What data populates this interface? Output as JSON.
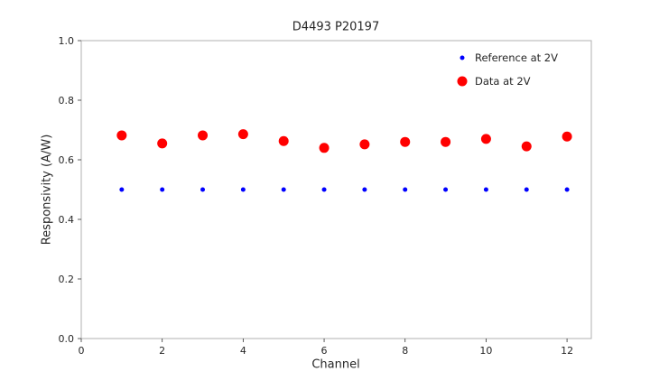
{
  "chart_data": {
    "type": "scatter",
    "title": "D4493 P20197",
    "xlabel": "Channel",
    "ylabel": "Responsivity (A/W)",
    "xlim": [
      0,
      12.6
    ],
    "ylim": [
      0.0,
      1.0
    ],
    "x_ticks": [
      0,
      2,
      4,
      6,
      8,
      10,
      12
    ],
    "x_tick_labels": [
      "0",
      "2",
      "4",
      "6",
      "8",
      "10",
      "12"
    ],
    "y_ticks": [
      0.0,
      0.2,
      0.4,
      0.6,
      0.8,
      1.0
    ],
    "y_tick_labels": [
      "0.0",
      "0.2",
      "0.4",
      "0.6",
      "0.8",
      "1.0"
    ],
    "grid": false,
    "legend_position": "upper right",
    "x": [
      1,
      2,
      3,
      4,
      5,
      6,
      7,
      8,
      9,
      10,
      11,
      12
    ],
    "series": [
      {
        "name": "Reference at 2V",
        "color": "#0000ff",
        "marker_radius": 2.5,
        "values": [
          0.5,
          0.5,
          0.5,
          0.5,
          0.5,
          0.5,
          0.5,
          0.5,
          0.5,
          0.5,
          0.5,
          0.5
        ]
      },
      {
        "name": "Data at 2V",
        "color": "#ff0000",
        "marker_radius": 5.5,
        "values": [
          0.682,
          0.655,
          0.682,
          0.686,
          0.663,
          0.64,
          0.652,
          0.66,
          0.66,
          0.67,
          0.645,
          0.678
        ]
      }
    ],
    "frame_color": "#b0b0b0",
    "tick_color": "#333333"
  }
}
